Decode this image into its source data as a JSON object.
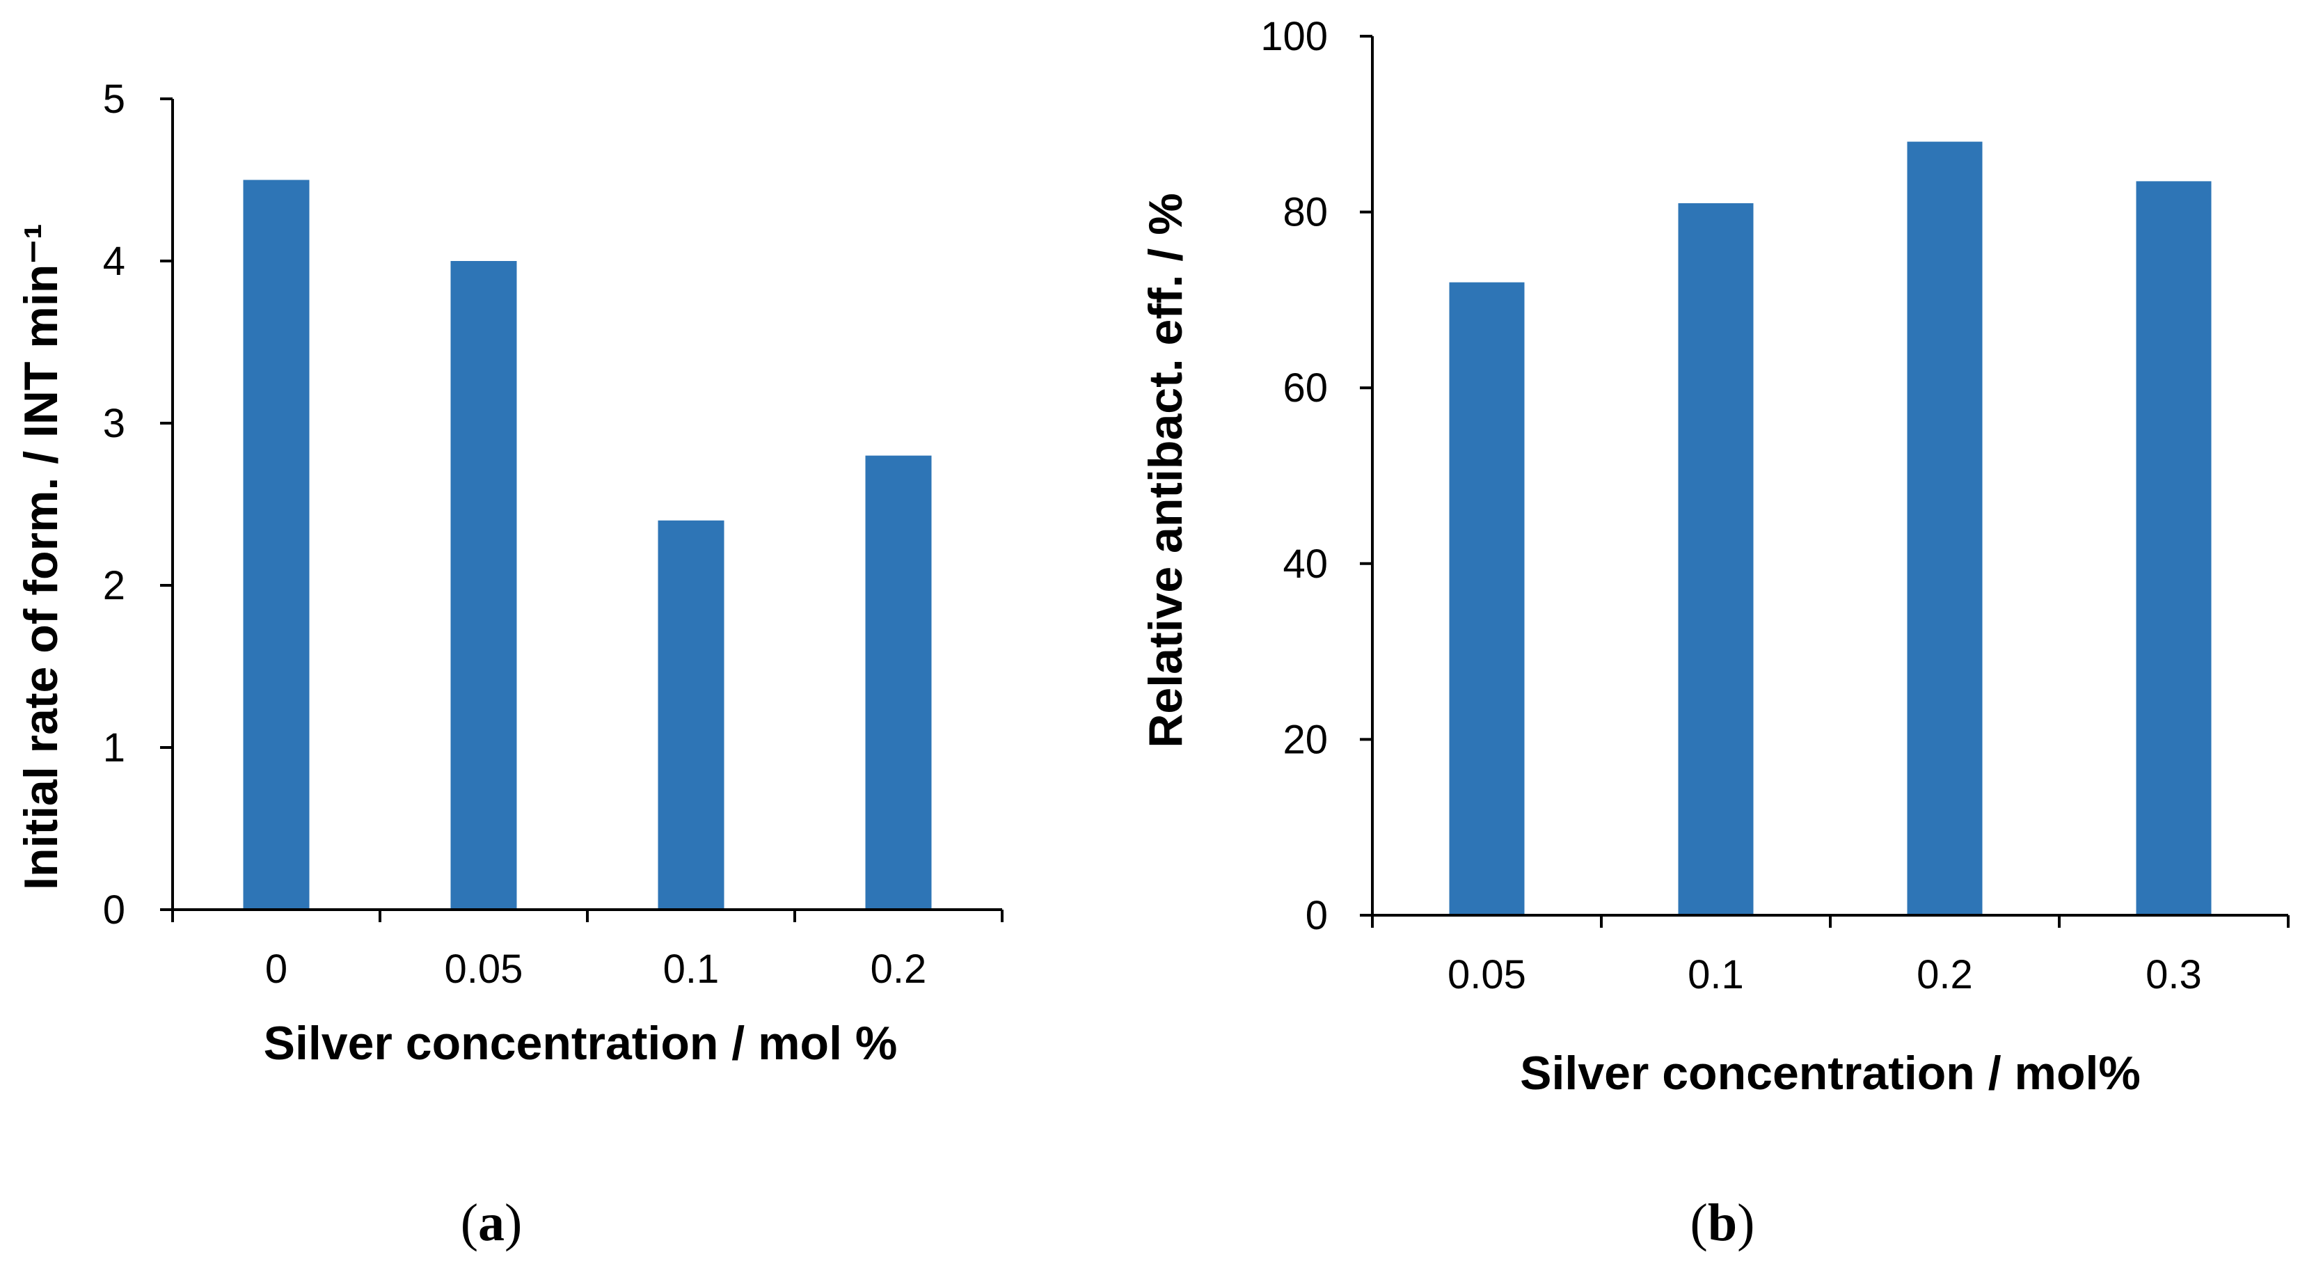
{
  "chart_data": [
    {
      "type": "bar",
      "panel_label": {
        "open": "(",
        "letter": "a",
        "close": ")"
      },
      "title": "",
      "xlabel": "Silver concentration  / mol %",
      "ylabel": "Initial rate of form. / INT min⁻¹",
      "categories": [
        "0",
        "0.05",
        "0.1",
        "0.2"
      ],
      "values": [
        4.5,
        4.0,
        2.4,
        2.8
      ],
      "ylim": [
        0,
        5
      ],
      "yticks": [
        "0",
        "1",
        "2",
        "3",
        "4",
        "5"
      ],
      "bar_color": "#2e75b6",
      "grid": false
    },
    {
      "type": "bar",
      "panel_label": {
        "open": "(",
        "letter": "b",
        "close": ")"
      },
      "title": "",
      "xlabel": "Silver concentration  / mol%",
      "ylabel": "Relative  antibact. eff. / %",
      "categories": [
        "0.05",
        "0.1",
        "0.2",
        "0.3"
      ],
      "values": [
        72,
        81,
        88,
        83.5
      ],
      "ylim": [
        0,
        100
      ],
      "yticks": [
        "0",
        "20",
        "40",
        "60",
        "80",
        "100"
      ],
      "bar_color": "#2e75b6",
      "grid": false
    }
  ]
}
